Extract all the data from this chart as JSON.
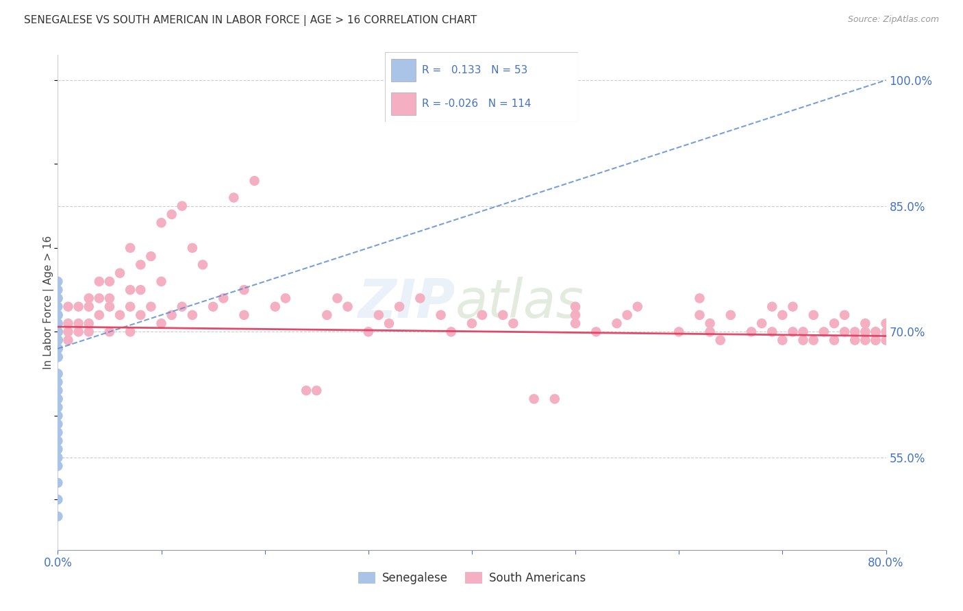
{
  "title": "SENEGALESE VS SOUTH AMERICAN IN LABOR FORCE | AGE > 16 CORRELATION CHART",
  "source": "Source: ZipAtlas.com",
  "ylabel": "In Labor Force | Age > 16",
  "ylabel_ticks": [
    "100.0%",
    "85.0%",
    "70.0%",
    "55.0%"
  ],
  "ylabel_tick_vals": [
    1.0,
    0.85,
    0.7,
    0.55
  ],
  "xlim": [
    0.0,
    0.8
  ],
  "ylim": [
    0.44,
    1.03
  ],
  "senegalese_R": 0.133,
  "senegalese_N": 53,
  "southamerican_R": -0.026,
  "southamerican_N": 114,
  "sen_color": "#aac4e8",
  "sam_color": "#f5afc2",
  "sen_line_color": "#5588cc",
  "sam_line_color": "#e04060",
  "background_color": "#ffffff",
  "senegalese_x": [
    0.0,
    0.0,
    0.0,
    0.0,
    0.0,
    0.0,
    0.0,
    0.0,
    0.0,
    0.0,
    0.0,
    0.0,
    0.0,
    0.0,
    0.0,
    0.0,
    0.0,
    0.0,
    0.0,
    0.0,
    0.0,
    0.0,
    0.0,
    0.0,
    0.0,
    0.0,
    0.0,
    0.0,
    0.0,
    0.0,
    0.0,
    0.0,
    0.0,
    0.0,
    0.0,
    0.0,
    0.0,
    0.0,
    0.0,
    0.0,
    0.0,
    0.0,
    0.0,
    0.0,
    0.0,
    0.0,
    0.0,
    0.0,
    0.0,
    0.0,
    0.0,
    0.0,
    0.0
  ],
  "senegalese_y": [
    0.76,
    0.75,
    0.74,
    0.74,
    0.73,
    0.72,
    0.72,
    0.72,
    0.71,
    0.71,
    0.71,
    0.7,
    0.7,
    0.7,
    0.7,
    0.7,
    0.7,
    0.7,
    0.7,
    0.7,
    0.7,
    0.69,
    0.69,
    0.69,
    0.69,
    0.69,
    0.68,
    0.68,
    0.68,
    0.68,
    0.68,
    0.68,
    0.67,
    0.67,
    0.67,
    0.67,
    0.65,
    0.65,
    0.64,
    0.63,
    0.62,
    0.62,
    0.61,
    0.6,
    0.59,
    0.58,
    0.57,
    0.56,
    0.55,
    0.54,
    0.52,
    0.5,
    0.48
  ],
  "southamerican_x": [
    0.02,
    0.02,
    0.02,
    0.03,
    0.03,
    0.03,
    0.03,
    0.04,
    0.04,
    0.04,
    0.05,
    0.05,
    0.05,
    0.05,
    0.06,
    0.06,
    0.07,
    0.07,
    0.07,
    0.07,
    0.08,
    0.08,
    0.08,
    0.09,
    0.09,
    0.1,
    0.1,
    0.1,
    0.11,
    0.11,
    0.12,
    0.12,
    0.13,
    0.13,
    0.14,
    0.15,
    0.16,
    0.17,
    0.18,
    0.18,
    0.19,
    0.21,
    0.22,
    0.24,
    0.25,
    0.26,
    0.27,
    0.28,
    0.3,
    0.31,
    0.32,
    0.33,
    0.35,
    0.37,
    0.38,
    0.4,
    0.41,
    0.43,
    0.44,
    0.46,
    0.48,
    0.5,
    0.5,
    0.5,
    0.52,
    0.54,
    0.55,
    0.56,
    0.6,
    0.62,
    0.62,
    0.63,
    0.63,
    0.64,
    0.65,
    0.67,
    0.68,
    0.69,
    0.69,
    0.7,
    0.7,
    0.71,
    0.71,
    0.72,
    0.72,
    0.73,
    0.73,
    0.74,
    0.75,
    0.75,
    0.76,
    0.76,
    0.77,
    0.77,
    0.78,
    0.78,
    0.78,
    0.79,
    0.79,
    0.79,
    0.79,
    0.8,
    0.8,
    0.8,
    0.01,
    0.01,
    0.01,
    0.01,
    0.0,
    0.0,
    0.0,
    0.0,
    0.0,
    0.0
  ],
  "southamerican_y": [
    0.73,
    0.71,
    0.7,
    0.74,
    0.73,
    0.71,
    0.7,
    0.76,
    0.74,
    0.72,
    0.76,
    0.74,
    0.73,
    0.7,
    0.77,
    0.72,
    0.8,
    0.75,
    0.73,
    0.7,
    0.78,
    0.75,
    0.72,
    0.79,
    0.73,
    0.83,
    0.76,
    0.71,
    0.84,
    0.72,
    0.85,
    0.73,
    0.8,
    0.72,
    0.78,
    0.73,
    0.74,
    0.86,
    0.75,
    0.72,
    0.88,
    0.73,
    0.74,
    0.63,
    0.63,
    0.72,
    0.74,
    0.73,
    0.7,
    0.72,
    0.71,
    0.73,
    0.74,
    0.72,
    0.7,
    0.71,
    0.72,
    0.72,
    0.71,
    0.62,
    0.62,
    0.72,
    0.71,
    0.73,
    0.7,
    0.71,
    0.72,
    0.73,
    0.7,
    0.72,
    0.74,
    0.7,
    0.71,
    0.69,
    0.72,
    0.7,
    0.71,
    0.73,
    0.7,
    0.72,
    0.69,
    0.7,
    0.73,
    0.69,
    0.7,
    0.72,
    0.69,
    0.7,
    0.71,
    0.69,
    0.7,
    0.72,
    0.69,
    0.7,
    0.69,
    0.7,
    0.71,
    0.69,
    0.7,
    0.69,
    0.7,
    0.69,
    0.7,
    0.71,
    0.73,
    0.71,
    0.7,
    0.69,
    0.7,
    0.7,
    0.7,
    0.69,
    0.68,
    0.7
  ],
  "sen_trendline_x": [
    0.0,
    0.8
  ],
  "sen_trendline_y": [
    0.68,
    1.0
  ],
  "sam_trendline_x": [
    0.0,
    0.8
  ],
  "sam_trendline_y": [
    0.706,
    0.695
  ]
}
